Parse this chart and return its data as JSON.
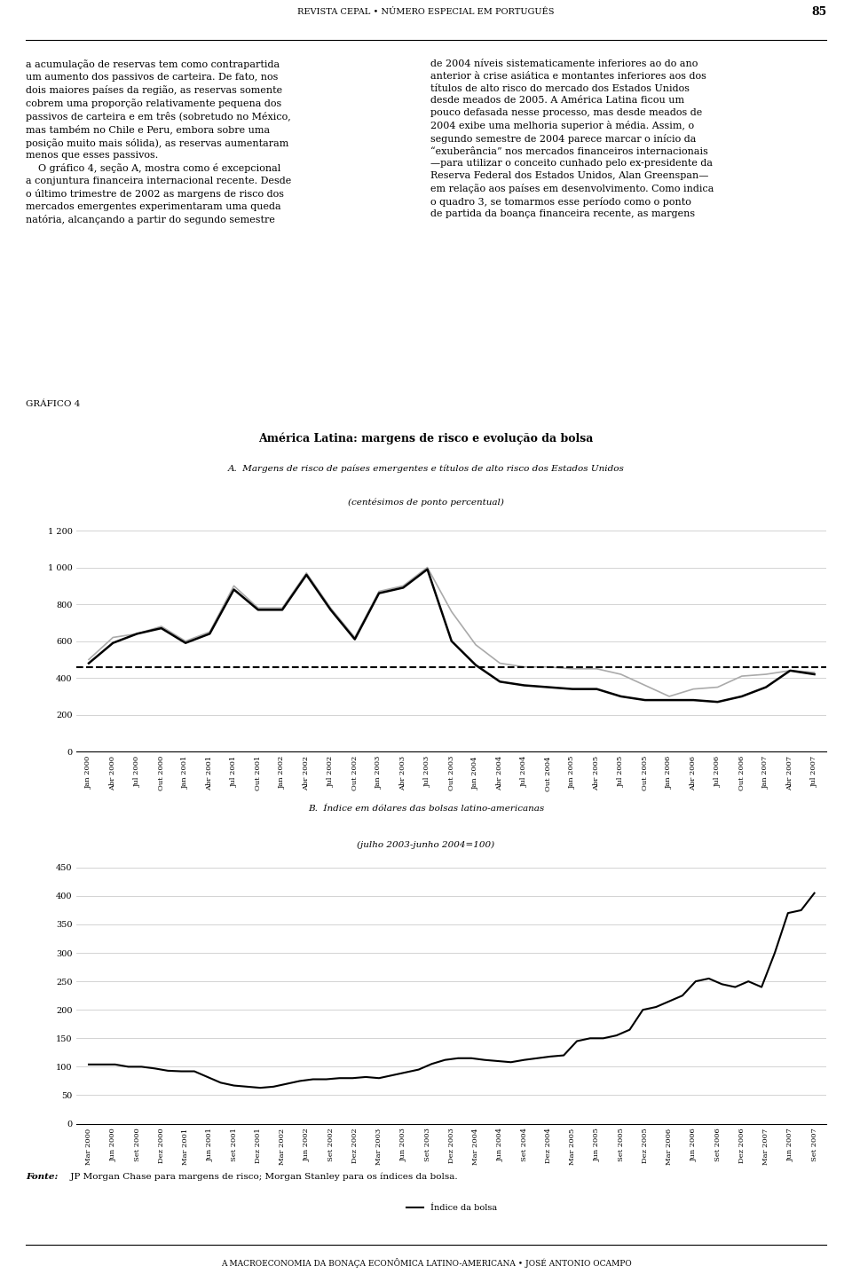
{
  "page_header": "REVISTA CEPAL • NÚMERO ESPECIAL EM PORTUGUÊS",
  "page_number": "85",
  "page_footer": "A MACROECONOMIA DA BONAÇA ECONÔMICA LATINO-AMERICANA • JOSÉ ANTONIO OCAMPO",
  "body_text_left": "a acumulação de reservas tem como contrapartida\num aumento dos passivos de carteira. De fato, nos\ndois maiores países da região, as reservas somente\ncobrem uma proporção relativamente pequena dos\npassivos de carteira e em três (sobretudo no México,\nmas também no Chile e Peru, embora sobre uma\nposição muito mais sólida), as reservas aumentaram\nmenos que esses passivos.\n    O gráfico 4, seção A, mostra como é excepcional\na conjuntura financeira internacional recente. Desde\no último trimestre de 2002 as margens de risco dos\nmercados emergentes experimentaram uma queda\nnatória, alcançando a partir do segundo semestre",
  "body_text_right": "de 2004 níveis sistematicamente inferiores ao do ano\nanterior à crise asiática e montantes inferiores aos dos\ntítulos de alto risco do mercado dos Estados Unidos\ndesde meados de 2005. A América Latina ficou um\npouco defasada nesse processo, mas desde meados de\n2004 exibe uma melhoria superior à média. Assim, o\nsegundo semestre de 2004 parece marcar o início da\n“exuberância” nos mercados financeiros internacionais\n—para utilizar o conceito cunhado pelo ex-presidente da\nReserva Federal dos Estados Unidos, Alan Greenspan—\nem relação aos países em desenvolvimento. Como indica\no quadro 3, se tomarmos esse período como o ponto\nde partida da boança financeira recente, as margens",
  "grafico_label": "GRÁFICO 4",
  "chart_title": "América Latina: margens de risco e evolução da bolsa",
  "panel_A_title": "A.  Margens de risco de países emergentes e títulos de alto risco dos Estados Unidos",
  "panel_A_subtitle": "(centésimos de ponto percentual)",
  "panel_B_title": "B.  Índice em dólares das bolsas latino-americanas",
  "panel_B_subtitle": "(julho 2003-junho 2004=100)",
  "fonte_bold": "Fonte:",
  "fonte_normal": " JP Morgan Chase para margens de risco; Morgan Stanley para os índices da bolsa.",
  "panel_A_yticks": [
    0,
    200,
    400,
    600,
    800,
    1000,
    1200
  ],
  "panel_A_ylim": [
    0,
    1300
  ],
  "panel_A_xticks": [
    "Jan 2000",
    "Abr 2000",
    "Jul 2000",
    "Out 2000",
    "Jan 2001",
    "Abr 2001",
    "Jul 2001",
    "Out 2001",
    "Jan 2002",
    "Abr 2002",
    "Jul 2002",
    "Out 2002",
    "Jan 2003",
    "Abr 2003",
    "Jul 2003",
    "Out 2003",
    "Jan 2004",
    "Abr 2004",
    "Jul 2004",
    "Out 2004",
    "Jan 2005",
    "Abr 2005",
    "Jul 2005",
    "Out 2005",
    "Jan 2006",
    "Abr 2006",
    "Jul 2006",
    "Out 2006",
    "Jan 2007",
    "Abr 2007",
    "Jul 2007"
  ],
  "embi_data": [
    500,
    620,
    640,
    680,
    600,
    650,
    900,
    780,
    780,
    970,
    780,
    620,
    870,
    900,
    1000,
    760,
    580,
    480,
    460,
    460,
    450,
    450,
    420,
    360,
    300,
    340,
    350,
    410,
    420,
    440,
    430
  ],
  "us_high_yield_data": [
    480,
    590,
    640,
    670,
    590,
    640,
    880,
    770,
    770,
    960,
    770,
    610,
    860,
    890,
    990,
    600,
    470,
    380,
    360,
    350,
    340,
    340,
    300,
    280,
    280,
    280,
    270,
    300,
    350,
    440,
    420
  ],
  "embi_mean": 460,
  "panel_B_yticks": [
    0,
    50,
    100,
    150,
    200,
    250,
    300,
    350,
    400,
    450
  ],
  "panel_B_ylim": [
    0,
    470
  ],
  "panel_B_xticks": [
    "Mar 2000",
    "Jun 2000",
    "Set 2000",
    "Dez 2000",
    "Mar 2001",
    "Jun 2001",
    "Set 2001",
    "Dez 2001",
    "Mar 2002",
    "Jun 2002",
    "Set 2002",
    "Dez 2002",
    "Mar 2003",
    "Jun 2003",
    "Set 2003",
    "Dez 2003",
    "Mar 2004",
    "Jun 2004",
    "Set 2004",
    "Dez 2004",
    "Mar 2005",
    "Jun 2005",
    "Set 2005",
    "Dez 2005",
    "Mar 2006",
    "Jun 2006",
    "Set 2006",
    "Dez 2006",
    "Mar 2007",
    "Jun 2007",
    "Set 2007"
  ],
  "stock_index_data": [
    104,
    104,
    104,
    100,
    100,
    97,
    93,
    92,
    92,
    82,
    72,
    67,
    65,
    63,
    65,
    70,
    75,
    78,
    78,
    80,
    80,
    82,
    80,
    85,
    90,
    95,
    105,
    112,
    115,
    115,
    112,
    110,
    108,
    112,
    115,
    118,
    120,
    145,
    150,
    150,
    155,
    165,
    200,
    205,
    215,
    225,
    250,
    255,
    245,
    240,
    250,
    240,
    300,
    370,
    375,
    405
  ],
  "legend_B_label": "Índice da bolsa",
  "background_color": "#ffffff",
  "text_color": "#000000",
  "grid_color": "#cccccc",
  "embi_color": "#aaaaaa",
  "hy_color": "#000000"
}
